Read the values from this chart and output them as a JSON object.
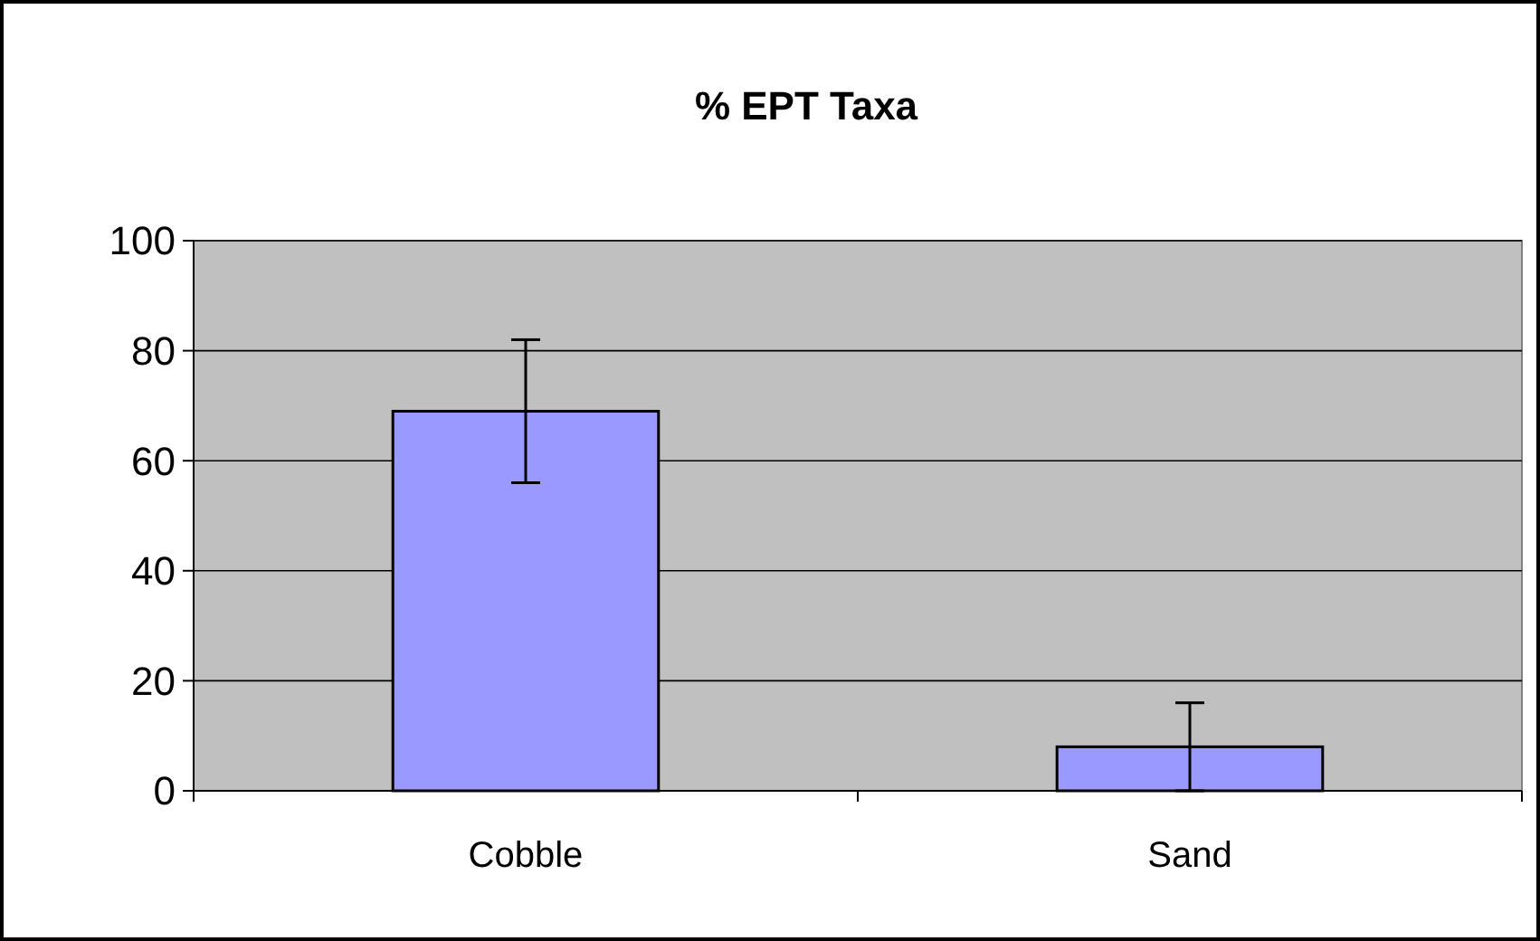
{
  "chart_data": {
    "type": "bar",
    "title": "% EPT Taxa",
    "categories": [
      "Cobble",
      "Sand"
    ],
    "values": [
      69,
      8
    ],
    "errors": [
      13,
      8
    ],
    "color": "#9999ff",
    "ylim": [
      0,
      100
    ],
    "yticks": [
      0,
      20,
      40,
      60,
      80,
      100
    ],
    "grid": "y"
  }
}
